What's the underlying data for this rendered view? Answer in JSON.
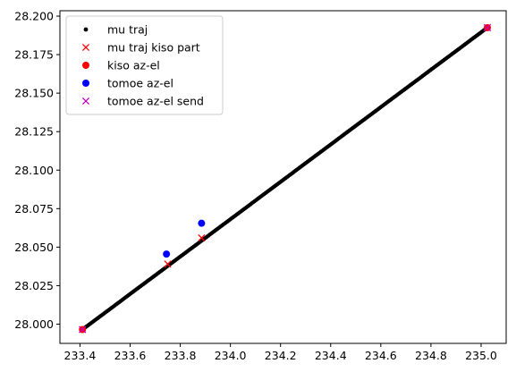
{
  "chart_data": {
    "type": "scatter",
    "title": "",
    "xlabel": "",
    "ylabel": "",
    "xlim": [
      233.32,
      235.1
    ],
    "ylim": [
      27.9875,
      28.2035
    ],
    "x_ticks": [
      233.4,
      233.6,
      233.8,
      234.0,
      234.2,
      234.4,
      234.6,
      234.8,
      235.0
    ],
    "x_tick_labels": [
      "233.4",
      "233.6",
      "233.8",
      "234.0",
      "234.2",
      "234.4",
      "234.6",
      "234.8",
      "235.0"
    ],
    "y_ticks": [
      28.0,
      28.025,
      28.05,
      28.075,
      28.1,
      28.125,
      28.15,
      28.175,
      28.2
    ],
    "y_tick_labels": [
      "28.000",
      "28.025",
      "28.050",
      "28.075",
      "28.100",
      "28.125",
      "28.150",
      "28.175",
      "28.200"
    ],
    "grid": false,
    "legend_position": "top-left",
    "series": [
      {
        "name": "mu traj",
        "color": "#000000",
        "marker": "dot",
        "line": {
          "x_start": 233.41,
          "y_start": 27.9965,
          "x_end": 235.025,
          "y_end": 28.1925,
          "num_points": 300
        }
      },
      {
        "name": "mu traj kiso part",
        "color": "#ff0000",
        "marker": "x",
        "points": [
          [
            233.41,
            27.9965
          ],
          [
            233.75,
            28.039
          ],
          [
            233.885,
            28.056
          ],
          [
            235.025,
            28.1925
          ]
        ]
      },
      {
        "name": "kiso az-el",
        "color": "#ff0000",
        "marker": "circle",
        "points": [
          [
            233.41,
            27.9965
          ],
          [
            235.025,
            28.1925
          ]
        ]
      },
      {
        "name": "tomoe az-el",
        "color": "#0000ff",
        "marker": "circle",
        "points": [
          [
            233.745,
            28.0455
          ],
          [
            233.885,
            28.0655
          ]
        ]
      },
      {
        "name": "tomoe az-el send",
        "color": "#bf00bf",
        "marker": "x",
        "points": [
          [
            233.41,
            27.9965
          ],
          [
            235.025,
            28.1925
          ]
        ]
      }
    ]
  }
}
